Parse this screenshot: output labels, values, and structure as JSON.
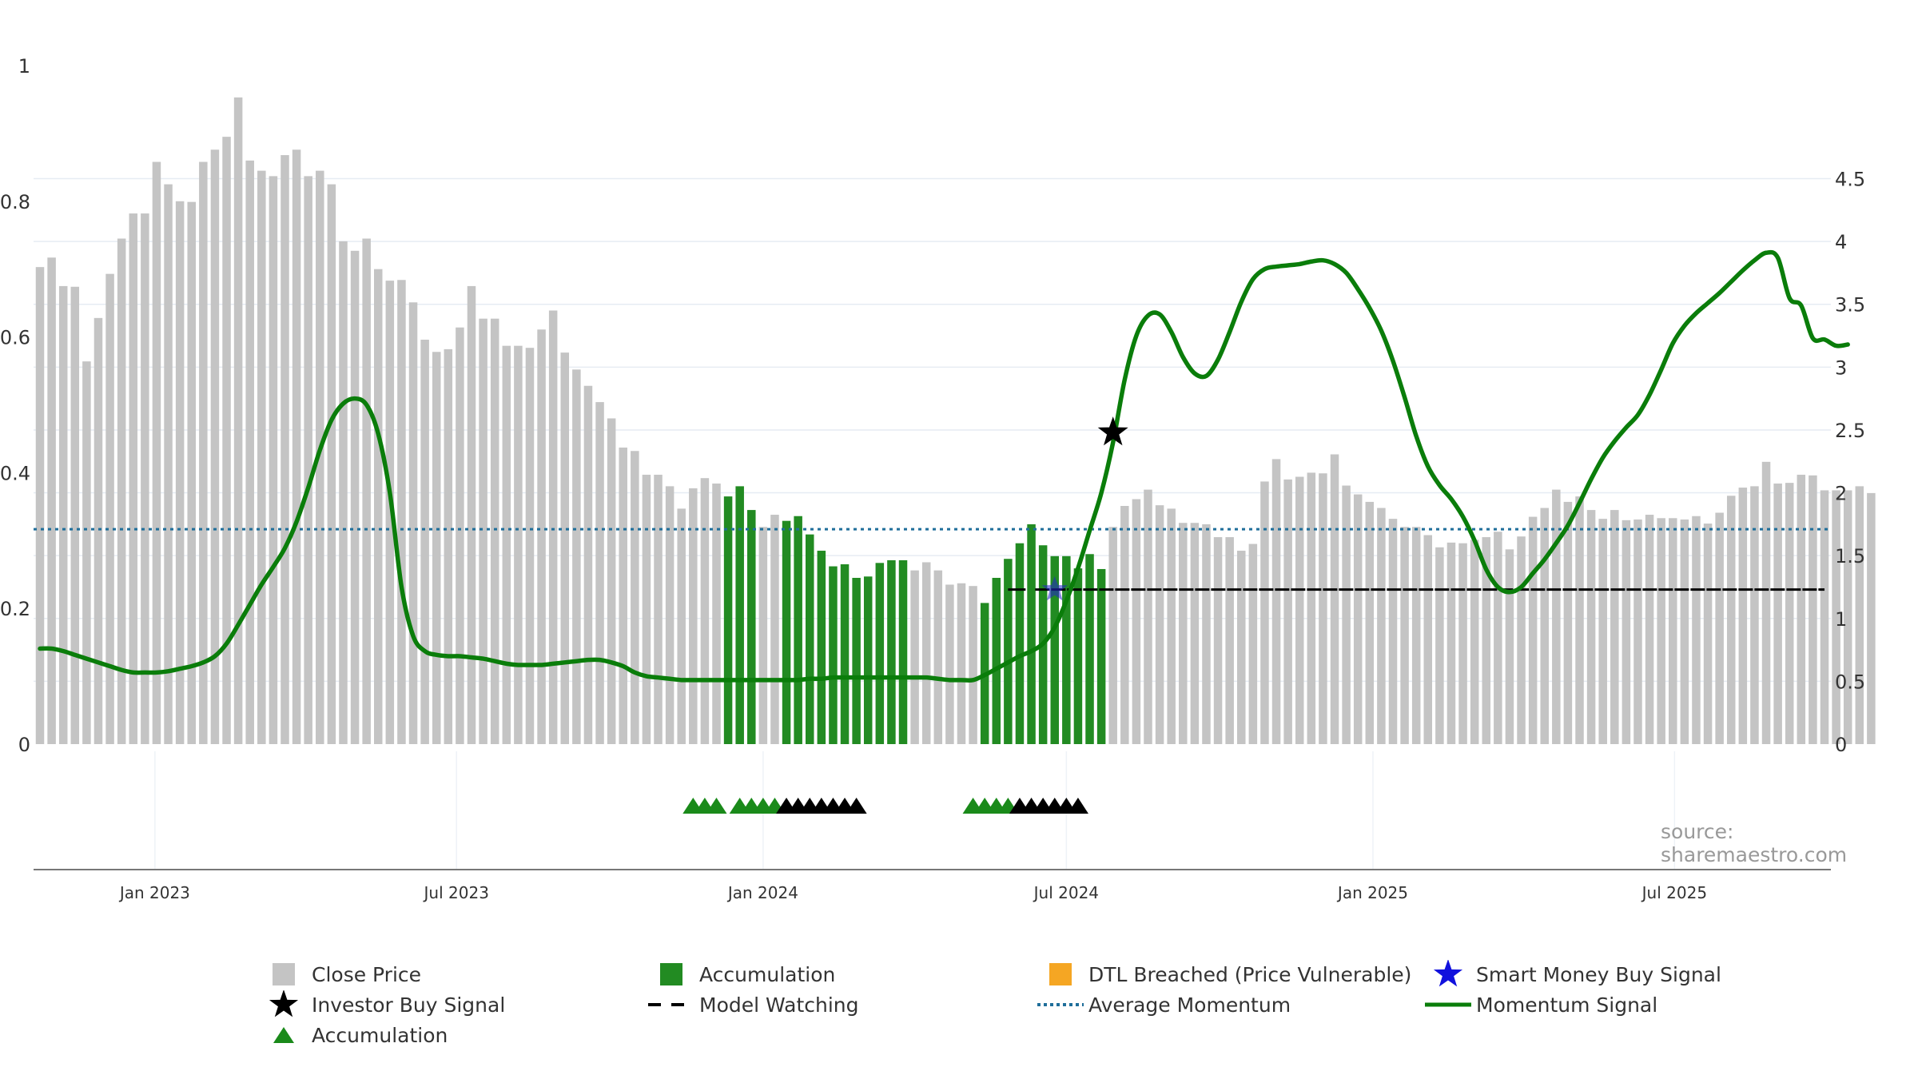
{
  "chart_data": {
    "type": "bar",
    "title": "",
    "source_text": "source: sharemaestro.com",
    "left_axis": {
      "range": [
        0,
        1
      ],
      "ticks": [
        {
          "v": 0,
          "label": "0"
        },
        {
          "v": 0.2,
          "label": "0.2"
        },
        {
          "v": 0.4,
          "label": "0.4"
        },
        {
          "v": 0.6,
          "label": "0.6"
        },
        {
          "v": 0.8,
          "label": "0.8"
        },
        {
          "v": 1,
          "label": "1"
        }
      ]
    },
    "right_axis": {
      "range": [
        0,
        5.4
      ],
      "ticks": [
        {
          "v": 0,
          "label": "0"
        },
        {
          "v": 0.5,
          "label": "0.5"
        },
        {
          "v": 1,
          "label": "1"
        },
        {
          "v": 1.5,
          "label": "1.5"
        },
        {
          "v": 2,
          "label": "2"
        },
        {
          "v": 2.5,
          "label": "2.5"
        },
        {
          "v": 3,
          "label": "3"
        },
        {
          "v": 3.5,
          "label": "3.5"
        },
        {
          "v": 4,
          "label": "4"
        },
        {
          "v": 4.5,
          "label": "4.5"
        }
      ]
    },
    "x_axis": {
      "range": [
        "2022-10-24",
        "2025-09-29"
      ],
      "ticks": [
        {
          "date": "2023-01-01",
          "label": "Jan 2023"
        },
        {
          "date": "2023-07-01",
          "label": "Jul 2023"
        },
        {
          "date": "2024-01-01",
          "label": "Jan 2024"
        },
        {
          "date": "2024-07-01",
          "label": "Jul 2024"
        },
        {
          "date": "2025-01-01",
          "label": "Jan 2025"
        },
        {
          "date": "2025-07-01",
          "label": "Jul 2025"
        }
      ]
    },
    "grid": true,
    "legend_position": "bottom",
    "colors": {
      "close_price": "#c4c4c4",
      "accumulation_bar": "#228b22",
      "momentum": "#0a7d0a",
      "average_momentum": "#1f6e9a",
      "model_watching": "#000000",
      "investor_buy": "#000000",
      "smart_money": "#2222cc",
      "dtl": "#f5a623",
      "triangle_accumulation": "#1a8a1a",
      "triangle_watching": "#000000"
    },
    "bars": {
      "start_date": "2022-10-24",
      "interval": "week",
      "values": [
        0.703,
        0.717,
        0.675,
        0.674,
        0.564,
        0.628,
        0.693,
        0.745,
        0.782,
        0.782,
        0.858,
        0.825,
        0.8,
        0.799,
        0.858,
        0.876,
        0.895,
        0.953,
        0.86,
        0.845,
        0.837,
        0.868,
        0.876,
        0.837,
        0.845,
        0.825,
        0.741,
        0.727,
        0.745,
        0.7,
        0.683,
        0.684,
        0.651,
        0.596,
        0.578,
        0.582,
        0.614,
        0.675,
        0.627,
        0.627,
        0.587,
        0.587,
        0.584,
        0.611,
        0.639,
        0.577,
        0.552,
        0.528,
        0.504,
        0.48,
        0.437,
        0.432,
        0.397,
        0.397,
        0.38,
        0.347,
        0.377,
        0.392,
        0.384,
        0.365,
        0.38,
        0.345,
        0.32,
        0.338,
        0.329,
        0.336,
        0.309,
        0.285,
        0.262,
        0.265,
        0.245,
        0.247,
        0.267,
        0.271,
        0.271,
        0.256,
        0.268,
        0.256,
        0.235,
        0.237,
        0.233,
        0.208,
        0.245,
        0.273,
        0.296,
        0.324,
        0.293,
        0.277,
        0.277,
        0.259,
        0.28,
        0.258,
        0.32,
        0.351,
        0.361,
        0.375,
        0.352,
        0.347,
        0.326,
        0.326,
        0.324,
        0.305,
        0.305,
        0.285,
        0.295,
        0.387,
        0.42,
        0.39,
        0.394,
        0.4,
        0.399,
        0.427,
        0.381,
        0.368,
        0.357,
        0.348,
        0.332,
        0.32,
        0.32,
        0.308,
        0.29,
        0.297,
        0.296,
        0.301,
        0.305,
        0.313,
        0.287,
        0.306,
        0.335,
        0.348,
        0.375,
        0.357,
        0.365,
        0.345,
        0.332,
        0.345,
        0.33,
        0.331,
        0.338,
        0.333,
        0.333,
        0.331,
        0.336,
        0.325,
        0.341,
        0.366,
        0.378,
        0.38,
        0.416,
        0.384,
        0.385,
        0.397,
        0.396,
        0.374,
        0.374,
        0.374,
        0.38,
        0.37
      ],
      "accumulation_indices": [
        59,
        60,
        61,
        64,
        65,
        66,
        67,
        68,
        69,
        70,
        71,
        72,
        73,
        74,
        81,
        82,
        83,
        84,
        85,
        86,
        87,
        88,
        89,
        90,
        91
      ]
    },
    "series": [
      {
        "name": "Momentum Signal",
        "axis": "right",
        "start_date": "2022-10-24",
        "interval": "week",
        "values": [
          0.76,
          0.76,
          0.74,
          0.71,
          0.68,
          0.65,
          0.62,
          0.59,
          0.57,
          0.57,
          0.57,
          0.58,
          0.6,
          0.62,
          0.65,
          0.7,
          0.8,
          0.95,
          1.11,
          1.27,
          1.41,
          1.56,
          1.77,
          2.04,
          2.34,
          2.58,
          2.71,
          2.75,
          2.7,
          2.47,
          2.0,
          1.25,
          0.86,
          0.74,
          0.71,
          0.7,
          0.7,
          0.69,
          0.68,
          0.66,
          0.64,
          0.63,
          0.63,
          0.63,
          0.64,
          0.65,
          0.66,
          0.67,
          0.67,
          0.65,
          0.62,
          0.57,
          0.54,
          0.53,
          0.52,
          0.51,
          0.51,
          0.51,
          0.51,
          0.51,
          0.51,
          0.51,
          0.51,
          0.51,
          0.51,
          0.51,
          0.52,
          0.52,
          0.53,
          0.53,
          0.53,
          0.53,
          0.53,
          0.53,
          0.53,
          0.53,
          0.53,
          0.52,
          0.51,
          0.51,
          0.51,
          0.55,
          0.6,
          0.65,
          0.7,
          0.74,
          0.8,
          0.93,
          1.14,
          1.4,
          1.7,
          2.0,
          2.4,
          2.9,
          3.25,
          3.41,
          3.42,
          3.28,
          3.08,
          2.95,
          2.93,
          3.06,
          3.28,
          3.52,
          3.7,
          3.78,
          3.8,
          3.81,
          3.82,
          3.84,
          3.85,
          3.82,
          3.75,
          3.62,
          3.47,
          3.29,
          3.05,
          2.76,
          2.45,
          2.21,
          2.06,
          1.95,
          1.81,
          1.62,
          1.39,
          1.25,
          1.21,
          1.25,
          1.36,
          1.47,
          1.6,
          1.74,
          1.92,
          2.11,
          2.28,
          2.41,
          2.52,
          2.62,
          2.78,
          2.98,
          3.19,
          3.33,
          3.43,
          3.51,
          3.59,
          3.68,
          3.77,
          3.85,
          3.91,
          3.87,
          3.55,
          3.49,
          3.23,
          3.22,
          3.17,
          3.18
        ]
      },
      {
        "name": "Average Momentum",
        "axis": "right",
        "value": 1.71
      }
    ],
    "model_watching": {
      "axis": "right",
      "value": 1.23,
      "start_date": "2024-05-27",
      "end_date": "2025-09-29"
    },
    "investor_buy_signal": {
      "date": "2024-07-29",
      "value": 2.48,
      "axis": "right"
    },
    "smart_money_buy_signal": {
      "date": "2024-06-24",
      "value": 1.23,
      "axis": "right"
    },
    "triangles": [
      {
        "date": "2023-11-20",
        "type": "accumulation"
      },
      {
        "date": "2023-11-27",
        "type": "accumulation"
      },
      {
        "date": "2023-12-04",
        "type": "accumulation"
      },
      {
        "date": "2023-12-18",
        "type": "accumulation"
      },
      {
        "date": "2023-12-25",
        "type": "accumulation"
      },
      {
        "date": "2024-01-01",
        "type": "accumulation"
      },
      {
        "date": "2024-01-08",
        "type": "accumulation"
      },
      {
        "date": "2024-01-15",
        "type": "watching"
      },
      {
        "date": "2024-01-22",
        "type": "watching"
      },
      {
        "date": "2024-01-29",
        "type": "watching"
      },
      {
        "date": "2024-02-05",
        "type": "watching"
      },
      {
        "date": "2024-02-12",
        "type": "watching"
      },
      {
        "date": "2024-02-19",
        "type": "watching"
      },
      {
        "date": "2024-02-26",
        "type": "watching"
      },
      {
        "date": "2024-05-06",
        "type": "accumulation"
      },
      {
        "date": "2024-05-13",
        "type": "accumulation"
      },
      {
        "date": "2024-05-20",
        "type": "accumulation"
      },
      {
        "date": "2024-05-27",
        "type": "accumulation"
      },
      {
        "date": "2024-06-03",
        "type": "watching"
      },
      {
        "date": "2024-06-10",
        "type": "watching"
      },
      {
        "date": "2024-06-17",
        "type": "watching"
      },
      {
        "date": "2024-06-24",
        "type": "watching"
      },
      {
        "date": "2024-07-01",
        "type": "watching"
      },
      {
        "date": "2024-07-08",
        "type": "watching"
      }
    ],
    "legend": [
      {
        "key": "close_price",
        "label": "Close Price",
        "symbol": "square",
        "color": "#c4c4c4"
      },
      {
        "key": "accumulation_bar",
        "label": "Accumulation",
        "symbol": "square",
        "color": "#228b22"
      },
      {
        "key": "dtl",
        "label": "DTL Breached (Price Vulnerable)",
        "symbol": "square",
        "color": "#f5a623"
      },
      {
        "key": "smart_money",
        "label": "Smart Money Buy Signal",
        "symbol": "star",
        "color": "#1111dd"
      },
      {
        "key": "investor_buy",
        "label": "Investor Buy Signal",
        "symbol": "star",
        "color": "#000000"
      },
      {
        "key": "model_watching",
        "label": "Model Watching",
        "symbol": "dash",
        "color": "#000000"
      },
      {
        "key": "average_momentum",
        "label": "Average Momentum",
        "symbol": "dotted",
        "color": "#1f6e9a"
      },
      {
        "key": "momentum",
        "label": "Momentum Signal",
        "symbol": "line",
        "color": "#0a7d0a"
      },
      {
        "key": "triangle_accumulation",
        "label": "Accumulation",
        "symbol": "triangle",
        "color": "#1a8a1a"
      }
    ]
  }
}
